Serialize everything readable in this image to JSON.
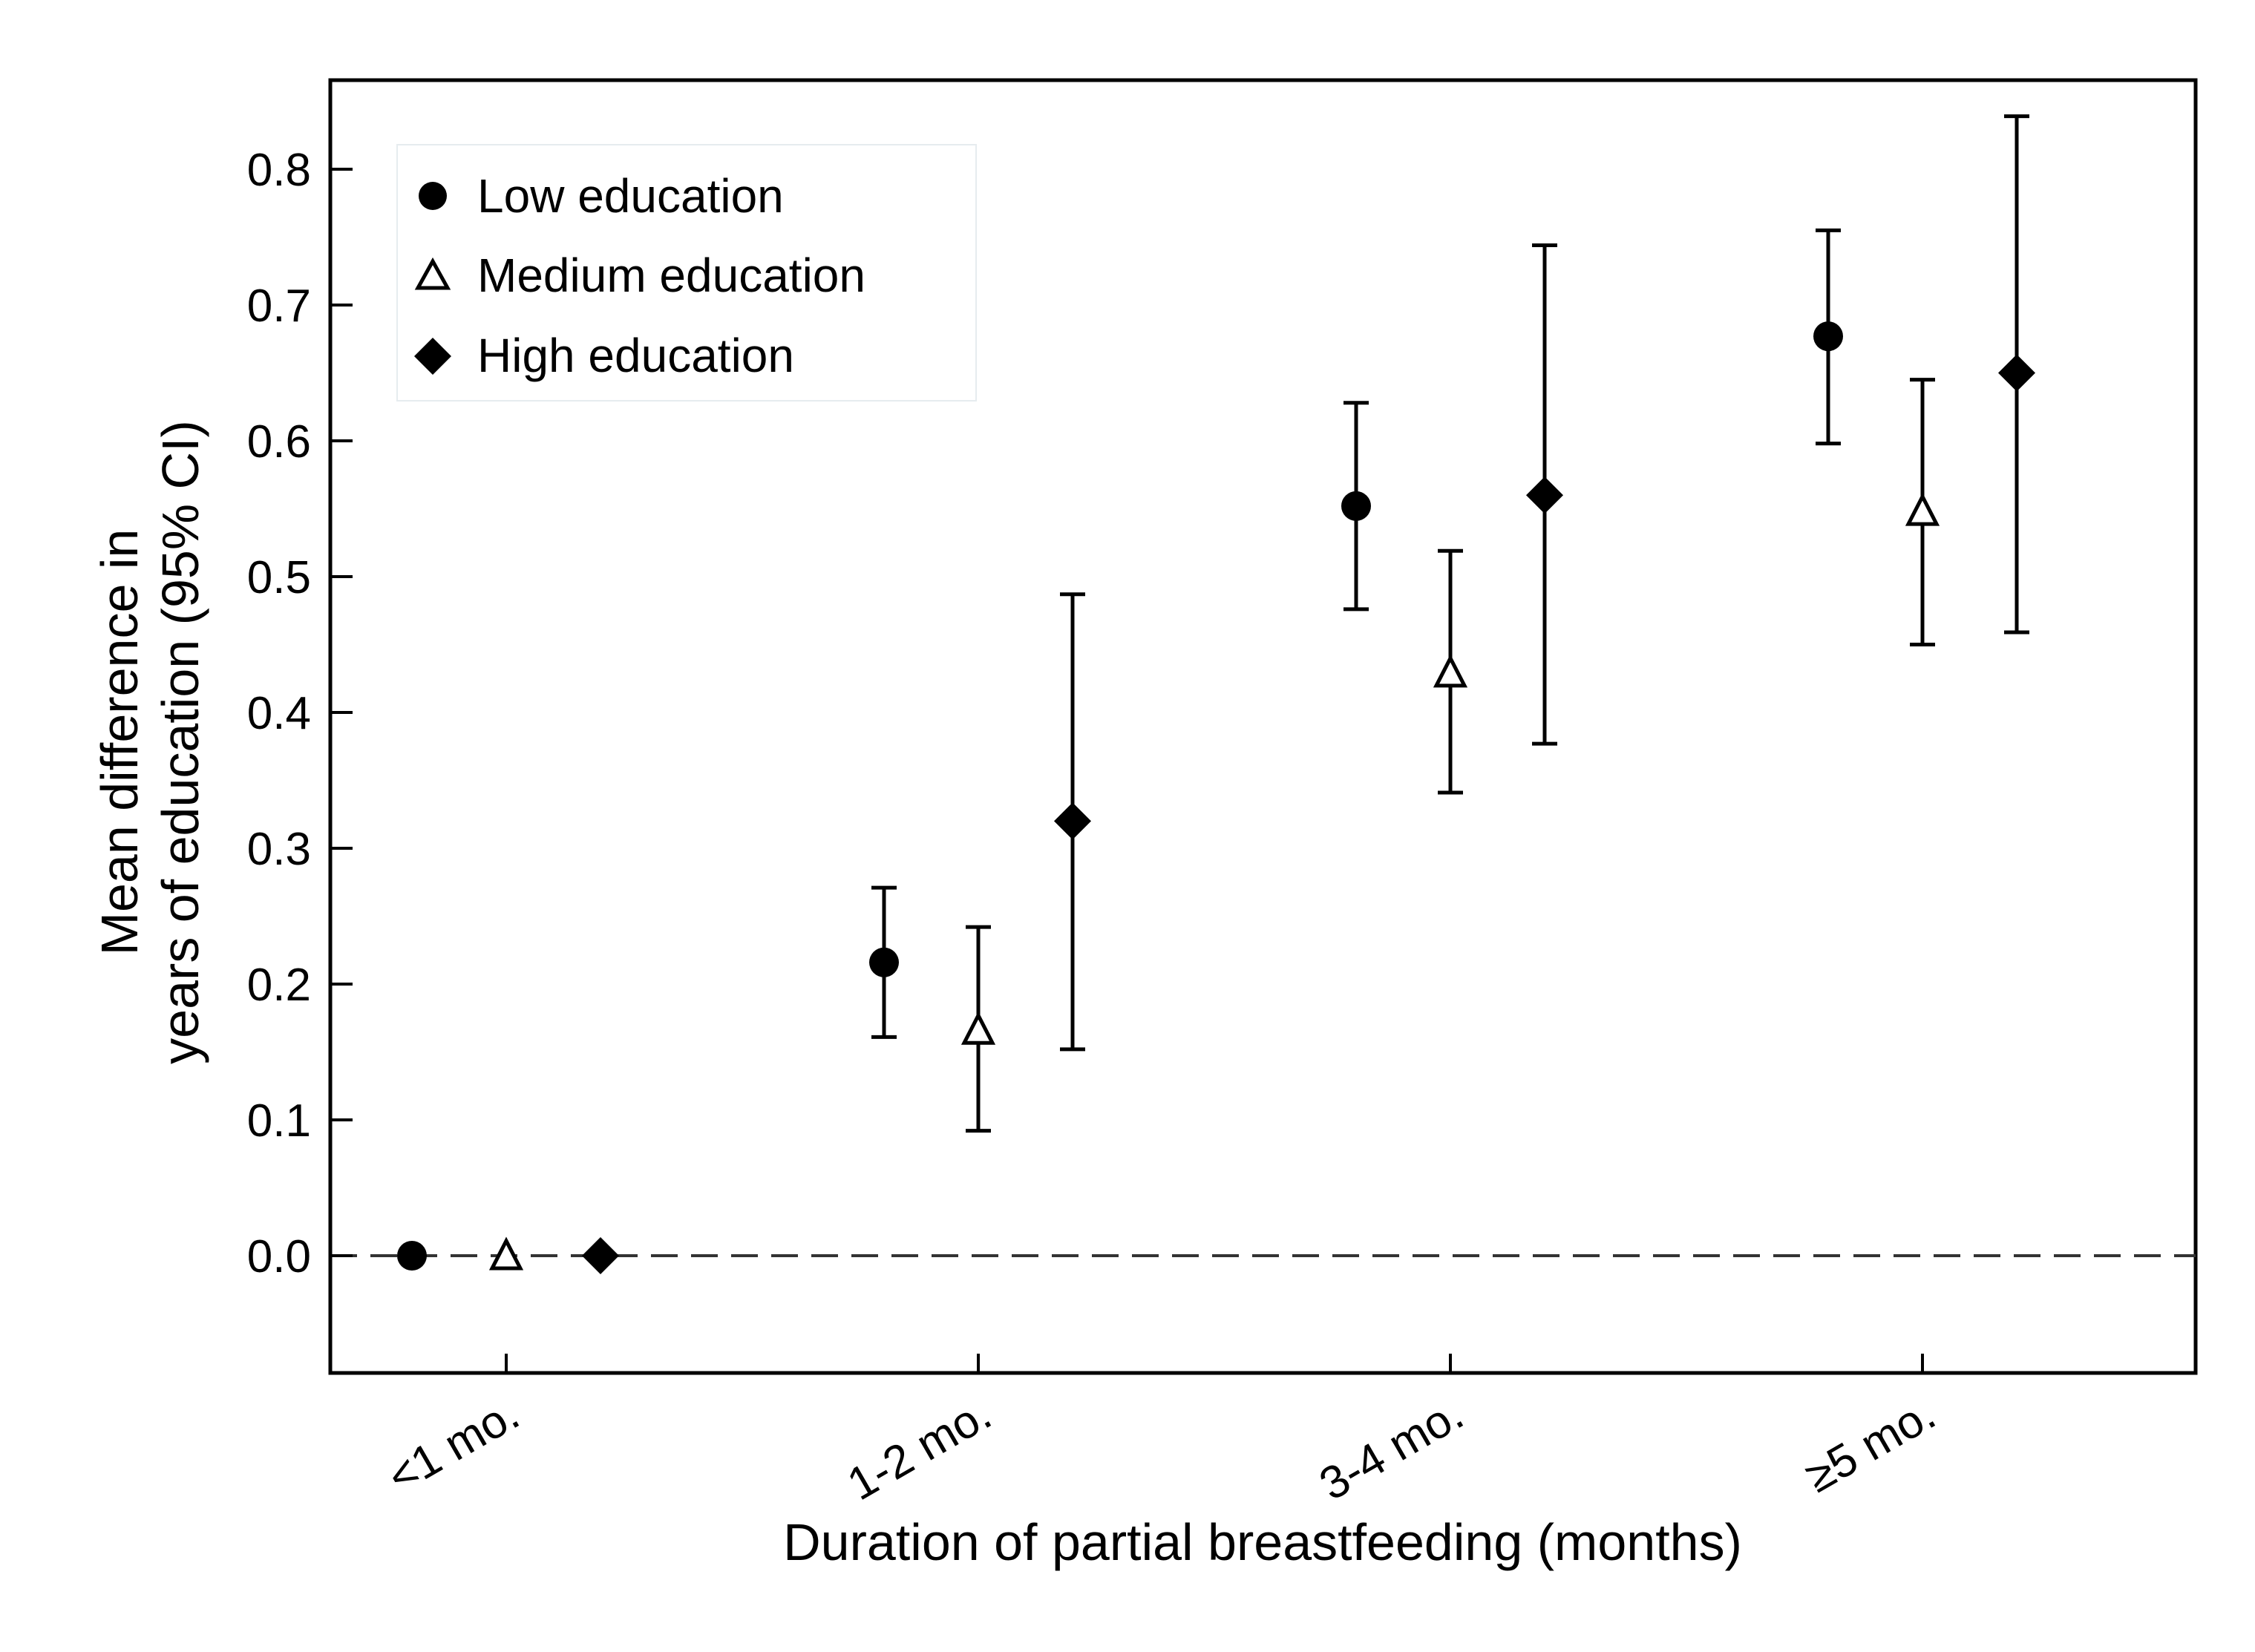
{
  "chart_data": {
    "type": "scatter",
    "xlabel": "Duration of partial breastfeeding (months)",
    "ylabel_lines": [
      "Mean difference in",
      "years of education (95% CI)"
    ],
    "categories": [
      "<1 mo.",
      "1-2 mo.",
      "3-4 mo.",
      "≥5 mo."
    ],
    "ylim": [
      -0.085,
      0.865
    ],
    "yticks": [
      0.0,
      0.1,
      0.2,
      0.3,
      0.4,
      0.5,
      0.6,
      0.7,
      0.8
    ],
    "ytick_labels": [
      "0.0",
      "0.1",
      "0.2",
      "0.3",
      "0.4",
      "0.5",
      "0.6",
      "0.7",
      "0.8"
    ],
    "reference_line": {
      "y": 0.0,
      "style": "dashed"
    },
    "grid": false,
    "legend_position": "top-left",
    "series": [
      {
        "name": "Low education",
        "marker": "filled-circle",
        "values": [
          0.0,
          0.216,
          0.552,
          0.677
        ],
        "ci_lower": [
          null,
          0.161,
          0.476,
          0.598
        ],
        "ci_upper": [
          null,
          0.271,
          0.628,
          0.755
        ]
      },
      {
        "name": "Medium education",
        "marker": "open-triangle",
        "values": [
          0.0,
          0.166,
          0.429,
          0.548
        ],
        "ci_lower": [
          null,
          0.092,
          0.341,
          0.45
        ],
        "ci_upper": [
          null,
          0.242,
          0.519,
          0.645
        ]
      },
      {
        "name": "High education",
        "marker": "filled-diamond",
        "values": [
          0.0,
          0.32,
          0.56,
          0.65
        ],
        "ci_lower": [
          null,
          0.152,
          0.377,
          0.459
        ],
        "ci_upper": [
          null,
          0.487,
          0.744,
          0.839
        ]
      }
    ]
  }
}
